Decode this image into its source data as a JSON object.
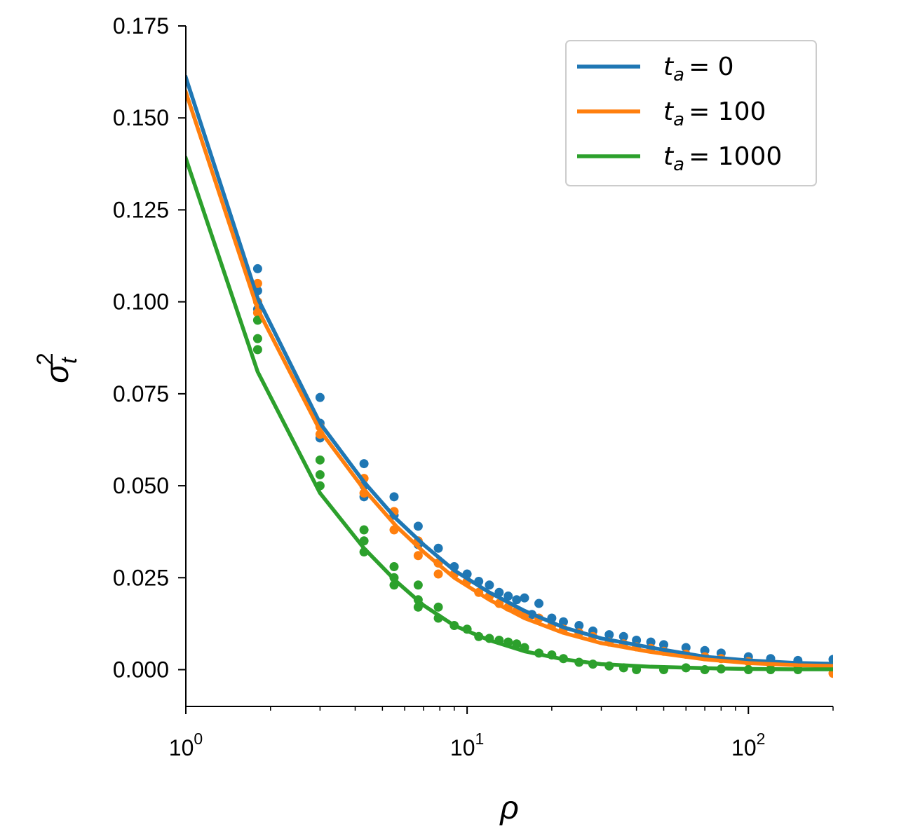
{
  "chart_data": {
    "type": "line",
    "xlabel": "ρ",
    "ylabel": "σ",
    "ylabel_sub": "t",
    "ylabel_sup": "2",
    "xscale": "log",
    "xlim": [
      1,
      200
    ],
    "ylim": [
      -0.01,
      0.175
    ],
    "x_ticks": [
      {
        "value": 1,
        "base": "10",
        "exp": "0"
      },
      {
        "value": 10,
        "base": "10",
        "exp": "1"
      },
      {
        "value": 100,
        "base": "10",
        "exp": "2"
      }
    ],
    "y_ticks": [
      {
        "value": 0.0,
        "label": "0.000"
      },
      {
        "value": 0.025,
        "label": "0.025"
      },
      {
        "value": 0.05,
        "label": "0.050"
      },
      {
        "value": 0.075,
        "label": "0.075"
      },
      {
        "value": 0.1,
        "label": "0.100"
      },
      {
        "value": 0.125,
        "label": "0.125"
      },
      {
        "value": 0.15,
        "label": "0.150"
      },
      {
        "value": 0.175,
        "label": "0.175"
      }
    ],
    "legend_position": "top-right",
    "series": [
      {
        "name": "t_a = 0",
        "legend_sym": "t",
        "legend_sub": "a",
        "legend_val": "= 0",
        "color": "#1f77b4",
        "line": [
          [
            1,
            0.161
          ],
          [
            1.8,
            0.101
          ],
          [
            3,
            0.067
          ],
          [
            4.3,
            0.051
          ],
          [
            5.6,
            0.041
          ],
          [
            7,
            0.034
          ],
          [
            9,
            0.027
          ],
          [
            12,
            0.021
          ],
          [
            16,
            0.016
          ],
          [
            22,
            0.0115
          ],
          [
            30,
            0.0085
          ],
          [
            45,
            0.006
          ],
          [
            70,
            0.0035
          ],
          [
            100,
            0.0025
          ],
          [
            150,
            0.0018
          ],
          [
            200,
            0.0016
          ]
        ],
        "points": [
          [
            1.8,
            0.109
          ],
          [
            1.8,
            0.103
          ],
          [
            1.8,
            0.098
          ],
          [
            3,
            0.074
          ],
          [
            3,
            0.067
          ],
          [
            3,
            0.063
          ],
          [
            4.3,
            0.056
          ],
          [
            4.3,
            0.05
          ],
          [
            4.3,
            0.047
          ],
          [
            5.5,
            0.047
          ],
          [
            5.5,
            0.042
          ],
          [
            6.7,
            0.039
          ],
          [
            6.7,
            0.034
          ],
          [
            7.9,
            0.033
          ],
          [
            7.9,
            0.029
          ],
          [
            9,
            0.028
          ],
          [
            10,
            0.026
          ],
          [
            11,
            0.024
          ],
          [
            12,
            0.023
          ],
          [
            13,
            0.021
          ],
          [
            14,
            0.02
          ],
          [
            15,
            0.019
          ],
          [
            16,
            0.0195
          ],
          [
            17,
            0.015
          ],
          [
            18,
            0.018
          ],
          [
            20,
            0.014
          ],
          [
            22,
            0.013
          ],
          [
            25,
            0.012
          ],
          [
            28,
            0.0105
          ],
          [
            32,
            0.0095
          ],
          [
            36,
            0.009
          ],
          [
            40,
            0.008
          ],
          [
            45,
            0.0075
          ],
          [
            50,
            0.0068
          ],
          [
            60,
            0.006
          ],
          [
            70,
            0.0052
          ],
          [
            80,
            0.0045
          ],
          [
            100,
            0.0035
          ],
          [
            120,
            0.003
          ],
          [
            150,
            0.0025
          ],
          [
            200,
            0.0028
          ]
        ]
      },
      {
        "name": "t_a = 100",
        "legend_sym": "t",
        "legend_sub": "a",
        "legend_val": "= 100",
        "color": "#ff7f0e",
        "line": [
          [
            1,
            0.157
          ],
          [
            1.8,
            0.098
          ],
          [
            3,
            0.065
          ],
          [
            4.3,
            0.049
          ],
          [
            5.6,
            0.039
          ],
          [
            7,
            0.032
          ],
          [
            9,
            0.025
          ],
          [
            12,
            0.019
          ],
          [
            16,
            0.014
          ],
          [
            22,
            0.01
          ],
          [
            30,
            0.0072
          ],
          [
            45,
            0.0048
          ],
          [
            70,
            0.0028
          ],
          [
            100,
            0.0018
          ],
          [
            150,
            0.0012
          ],
          [
            200,
            0.001
          ]
        ],
        "points": [
          [
            1.8,
            0.105
          ],
          [
            1.8,
            0.1
          ],
          [
            1.8,
            0.097
          ],
          [
            3,
            0.066
          ],
          [
            3,
            0.064
          ],
          [
            4.3,
            0.052
          ],
          [
            4.3,
            0.048
          ],
          [
            5.5,
            0.043
          ],
          [
            5.5,
            0.038
          ],
          [
            6.7,
            0.035
          ],
          [
            6.7,
            0.031
          ],
          [
            7.9,
            0.029
          ],
          [
            7.9,
            0.026
          ],
          [
            9,
            0.026
          ],
          [
            10,
            0.024
          ],
          [
            11,
            0.021
          ],
          [
            12,
            0.02
          ],
          [
            13,
            0.018
          ],
          [
            14,
            0.017
          ],
          [
            15,
            0.016
          ],
          [
            16,
            0.015
          ],
          [
            18,
            0.014
          ],
          [
            20,
            0.012
          ],
          [
            22,
            0.011
          ],
          [
            25,
            0.01
          ],
          [
            28,
            0.009
          ],
          [
            32,
            0.0075
          ],
          [
            36,
            0.007
          ],
          [
            40,
            0.0062
          ],
          [
            45,
            0.0058
          ],
          [
            50,
            0.005
          ],
          [
            60,
            0.0042
          ],
          [
            70,
            0.0035
          ],
          [
            80,
            0.003
          ],
          [
            100,
            0.0022
          ],
          [
            120,
            0.0015
          ],
          [
            150,
            0.001
          ],
          [
            200,
            -0.001
          ]
        ]
      },
      {
        "name": "t_a = 1000",
        "legend_sym": "t",
        "legend_sub": "a",
        "legend_val": "= 1000",
        "color": "#2ca02c",
        "line": [
          [
            1,
            0.139
          ],
          [
            1.8,
            0.081
          ],
          [
            3,
            0.048
          ],
          [
            4.3,
            0.033
          ],
          [
            5.6,
            0.024
          ],
          [
            7,
            0.0175
          ],
          [
            9,
            0.012
          ],
          [
            12,
            0.008
          ],
          [
            16,
            0.005
          ],
          [
            22,
            0.0028
          ],
          [
            30,
            0.0015
          ],
          [
            45,
            0.0008
          ],
          [
            70,
            0.0004
          ],
          [
            100,
            0.0002
          ],
          [
            150,
            0.0001
          ],
          [
            200,
            0.0001
          ]
        ],
        "points": [
          [
            1.8,
            0.095
          ],
          [
            1.8,
            0.09
          ],
          [
            1.8,
            0.087
          ],
          [
            3,
            0.057
          ],
          [
            3,
            0.053
          ],
          [
            3,
            0.05
          ],
          [
            4.3,
            0.038
          ],
          [
            4.3,
            0.035
          ],
          [
            4.3,
            0.032
          ],
          [
            5.5,
            0.028
          ],
          [
            5.5,
            0.025
          ],
          [
            5.5,
            0.023
          ],
          [
            6.7,
            0.023
          ],
          [
            6.7,
            0.019
          ],
          [
            6.7,
            0.017
          ],
          [
            7.9,
            0.017
          ],
          [
            7.9,
            0.014
          ],
          [
            9,
            0.012
          ],
          [
            10,
            0.011
          ],
          [
            11,
            0.009
          ],
          [
            12,
            0.0085
          ],
          [
            13,
            0.008
          ],
          [
            14,
            0.0075
          ],
          [
            15,
            0.007
          ],
          [
            16,
            0.006
          ],
          [
            18,
            0.0045
          ],
          [
            20,
            0.004
          ],
          [
            22,
            0.003
          ],
          [
            25,
            0.002
          ],
          [
            28,
            0.0015
          ],
          [
            32,
            0.001
          ],
          [
            36,
            0.0005
          ],
          [
            40,
            0.0
          ],
          [
            50,
            0.0
          ],
          [
            60,
            0.0005
          ],
          [
            70,
            0.0
          ],
          [
            80,
            0.0002
          ],
          [
            100,
            0.0
          ],
          [
            120,
            0.0
          ],
          [
            150,
            0.0
          ],
          [
            200,
            0.001
          ]
        ]
      }
    ]
  }
}
